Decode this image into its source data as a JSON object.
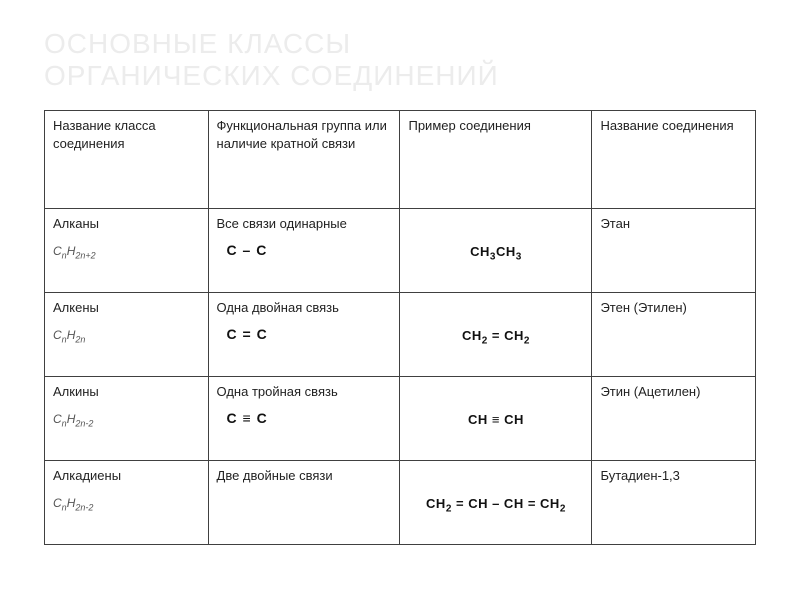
{
  "title_line1": "Основные классы",
  "title_line2": "органических соединений",
  "header": {
    "c0": "Название класса соединения",
    "c1": "Функциональная группа или наличие кратной связи",
    "c2": "Пример соединения",
    "c3": "Название соединения"
  },
  "col_widths_pct": [
    23,
    27,
    27,
    23
  ],
  "rows": [
    {
      "class_name": "Алканы",
      "general_formula_html": "C<sub>n</sub>H<sub>2n+2</sub>",
      "func_desc": "Все связи одинарные",
      "func_fragment_html": "C – C",
      "example_html": "CH<sub>3</sub>CH<sub>3</sub>",
      "compound_name": "Этан"
    },
    {
      "class_name": "Алкены",
      "general_formula_html": "C<sub>n</sub>H<sub>2n</sub>",
      "func_desc": "Одна двойная связь",
      "func_fragment_html": "C &#61; C",
      "example_html": "CH<sub>2</sub> &#61; CH<sub>2</sub>",
      "compound_name": "Этен (Этилен)"
    },
    {
      "class_name": "Алкины",
      "general_formula_html": "C<sub>n</sub>H<sub>2n-2</sub>",
      "func_desc": "Одна тройная связь",
      "func_fragment_html": "C ≡ C",
      "example_html": "CH ≡ CH",
      "compound_name": "Этин (Ацетилен)"
    },
    {
      "class_name": "Алкадиены",
      "general_formula_html": "C<sub>n</sub>H<sub>2n-2</sub>",
      "func_desc": "Две двойные связи",
      "func_fragment_html": "",
      "example_html": "CH<sub>2</sub> &#61; CH – CH &#61; CH<sub>2</sub>",
      "compound_name": "Бутадиен-1,3"
    }
  ],
  "style": {
    "title_color": "#ececec",
    "border_color": "#404040",
    "text_color": "#222222",
    "formula_color": "#555555"
  }
}
